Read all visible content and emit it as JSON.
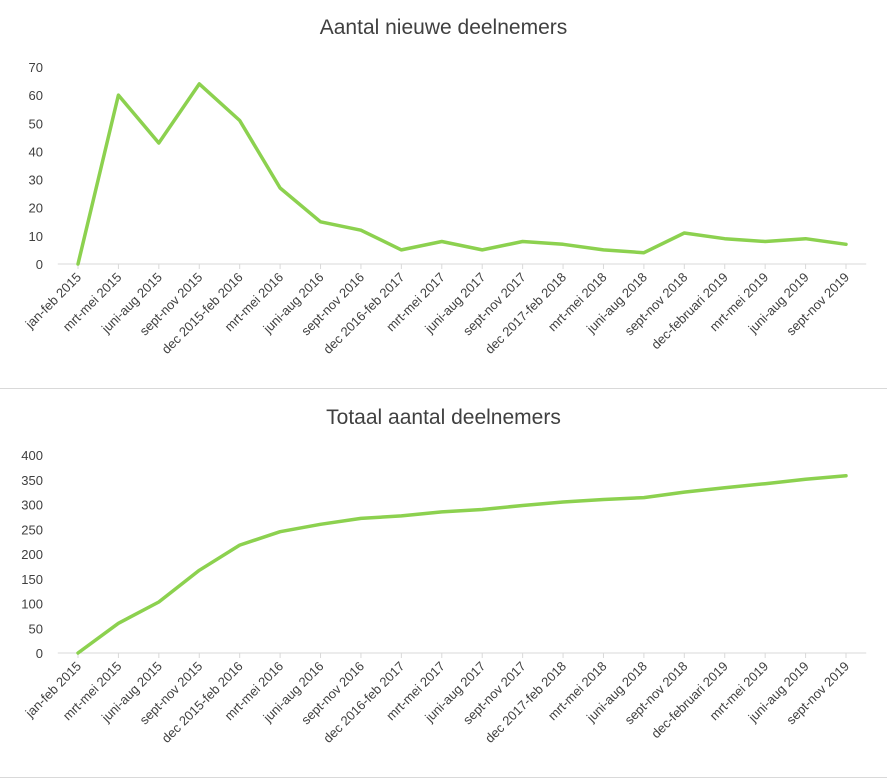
{
  "colors": {
    "line": "#8cd14f",
    "axis": "#d9d9d9",
    "text": "#404040"
  },
  "chart_data": [
    {
      "type": "line",
      "title": "Aantal nieuwe deelnemers",
      "xlabel": "",
      "ylabel": "",
      "ylim": [
        0,
        70
      ],
      "yticks": [
        "0",
        "10",
        "20",
        "30",
        "40",
        "50",
        "60",
        "70"
      ],
      "grid": false,
      "categories": [
        "jan-feb 2015",
        "mrt-mei 2015",
        "juni-aug 2015",
        "sept-nov 2015",
        "dec 2015-feb 2016",
        "mrt-mei 2016",
        "juni-aug 2016",
        "sept-nov 2016",
        "dec 2016-feb 2017",
        "mrt-mei 2017",
        "juni-aug 2017",
        "sept-nov 2017",
        "dec 2017-feb 2018",
        "mrt-mei 2018",
        "juni-aug 2018",
        "sept-nov 2018",
        "dec-februari 2019",
        "mrt-mei 2019",
        "juni-aug 2019",
        "sept-nov 2019"
      ],
      "values": [
        0,
        60,
        43,
        64,
        51,
        27,
        15,
        12,
        5,
        8,
        5,
        8,
        7,
        5,
        4,
        11,
        9,
        8,
        9,
        7
      ]
    },
    {
      "type": "line",
      "title": "Totaal aantal deelnemers",
      "xlabel": "",
      "ylabel": "",
      "ylim": [
        0,
        400
      ],
      "yticks": [
        "0",
        "50",
        "100",
        "150",
        "200",
        "250",
        "300",
        "350",
        "400"
      ],
      "grid": false,
      "categories": [
        "jan-feb 2015",
        "mrt-mei 2015",
        "juni-aug 2015",
        "sept-nov 2015",
        "dec 2015-feb 2016",
        "mrt-mei 2016",
        "juni-aug 2016",
        "sept-nov 2016",
        "dec 2016-feb 2017",
        "mrt-mei 2017",
        "juni-aug 2017",
        "sept-nov 2017",
        "dec 2017-feb 2018",
        "mrt-mei 2018",
        "juni-aug 2018",
        "sept-nov 2018",
        "dec-februari 2019",
        "mrt-mei 2019",
        "juni-aug 2019",
        "sept-nov 2019"
      ],
      "values": [
        0,
        60,
        103,
        167,
        218,
        245,
        260,
        272,
        277,
        285,
        290,
        298,
        305,
        310,
        314,
        325,
        334,
        342,
        351,
        358
      ]
    }
  ]
}
